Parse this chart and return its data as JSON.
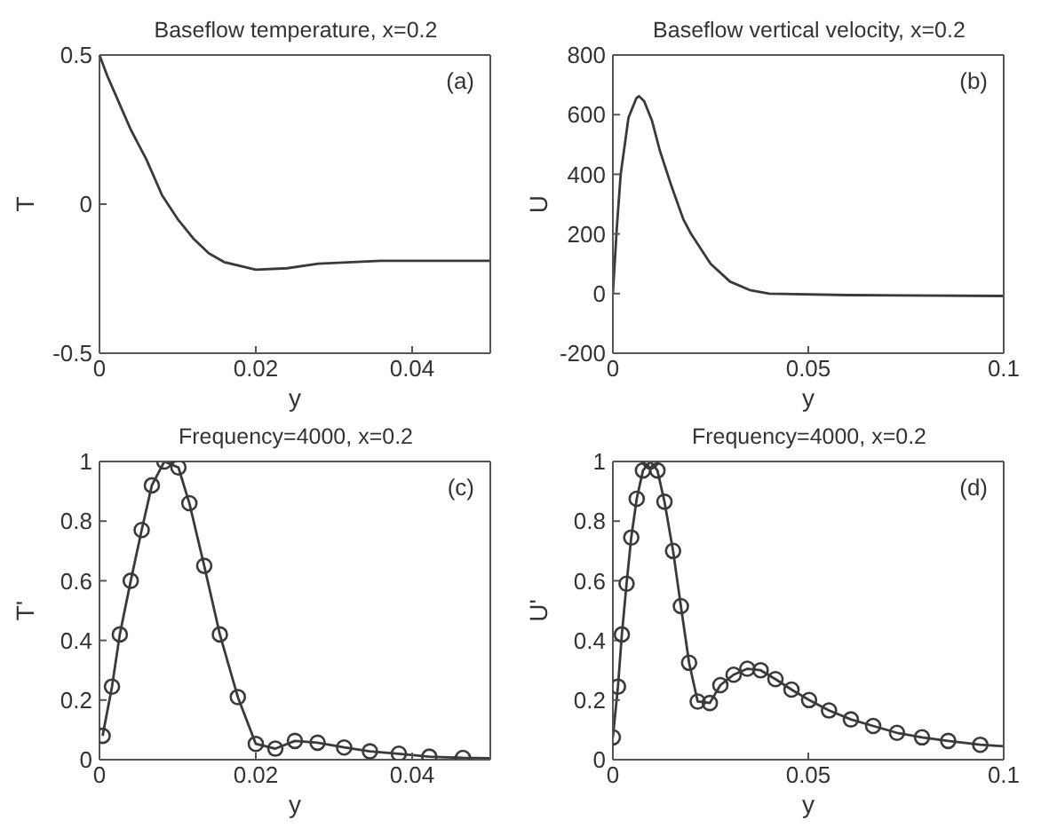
{
  "chart_data": [
    {
      "type": "line",
      "title": "Baseflow temperature, x=0.2",
      "xlabel": "y",
      "ylabel": "T",
      "annotations": [
        "(a)"
      ],
      "xlim": [
        0,
        0.05
      ],
      "ylim": [
        -0.5,
        0.5
      ],
      "xticks": [
        0,
        0.02,
        0.04
      ],
      "yticks": [
        -0.5,
        0,
        0.5
      ],
      "series": [
        {
          "color": "#3a3a3a",
          "marker": "none",
          "x": [
            0,
            0.001,
            0.002,
            0.003,
            0.004,
            0.005,
            0.006,
            0.007,
            0.008,
            0.01,
            0.012,
            0.014,
            0.016,
            0.02,
            0.024,
            0.028,
            0.036,
            0.05
          ],
          "values": [
            0.5,
            0.43,
            0.37,
            0.31,
            0.25,
            0.2,
            0.15,
            0.09,
            0.03,
            -0.05,
            -0.115,
            -0.165,
            -0.195,
            -0.22,
            -0.215,
            -0.2,
            -0.19,
            -0.19
          ]
        }
      ]
    },
    {
      "type": "line",
      "title": "Baseflow vertical velocity, x=0.2",
      "xlabel": "y",
      "ylabel": "U",
      "annotations": [
        "(b)"
      ],
      "xlim": [
        0,
        0.1
      ],
      "ylim": [
        -200,
        800
      ],
      "xticks": [
        0,
        0.05,
        0.1
      ],
      "yticks": [
        -200,
        0,
        200,
        400,
        600,
        800
      ],
      "series": [
        {
          "color": "#3a3a3a",
          "marker": "none",
          "x": [
            0,
            0.001,
            0.002,
            0.004,
            0.006,
            0.0067,
            0.008,
            0.01,
            0.012,
            0.015,
            0.018,
            0.02,
            0.025,
            0.03,
            0.035,
            0.04,
            0.06,
            0.1
          ],
          "values": [
            0,
            220,
            400,
            590,
            655,
            662,
            645,
            580,
            480,
            360,
            250,
            200,
            100,
            40,
            12,
            0,
            -5,
            -8
          ]
        }
      ]
    },
    {
      "type": "line",
      "title": "Frequency=4000, x=0.2",
      "xlabel": "y",
      "ylabel": "T'",
      "annotations": [
        "(c)"
      ],
      "xlim": [
        0,
        0.05
      ],
      "ylim": [
        0,
        1
      ],
      "xticks": [
        0,
        0.02,
        0.04
      ],
      "yticks": [
        0,
        0.2,
        0.4,
        0.6,
        0.8,
        1
      ],
      "series": [
        {
          "color": "#3a3a3a",
          "marker": "none",
          "x": [
            0.0004,
            0.0016,
            0.0026,
            0.004,
            0.0054,
            0.0067,
            0.0083,
            0.0101,
            0.0115,
            0.0134,
            0.0154,
            0.0177,
            0.02,
            0.0225,
            0.025,
            0.0279,
            0.0313,
            0.0346,
            0.0383,
            0.0422,
            0.0465,
            0.05
          ],
          "values": [
            0.08,
            0.245,
            0.42,
            0.6,
            0.77,
            0.92,
            1,
            0.98,
            0.86,
            0.65,
            0.42,
            0.21,
            0.053,
            0.037,
            0.063,
            0.057,
            0.041,
            0.028,
            0.02,
            0.01,
            0.006,
            0.005
          ]
        },
        {
          "type": "scatter",
          "color": "#3a3a3a",
          "marker": "circle",
          "x": [
            0.0004,
            0.0016,
            0.0026,
            0.004,
            0.0054,
            0.0067,
            0.0083,
            0.0101,
            0.0115,
            0.0134,
            0.0154,
            0.0177,
            0.02,
            0.0225,
            0.025,
            0.0279,
            0.0313,
            0.0346,
            0.0383,
            0.0422,
            0.0465
          ],
          "values": [
            0.08,
            0.245,
            0.42,
            0.6,
            0.77,
            0.92,
            1,
            0.98,
            0.86,
            0.65,
            0.42,
            0.21,
            0.053,
            0.037,
            0.063,
            0.057,
            0.041,
            0.028,
            0.02,
            0.01,
            0.006
          ]
        }
      ]
    },
    {
      "type": "line",
      "title": "Frequency=4000, x=0.2",
      "xlabel": "y",
      "ylabel": "U'",
      "annotations": [
        "(d)"
      ],
      "xlim": [
        0,
        0.1
      ],
      "ylim": [
        0,
        1
      ],
      "xticks": [
        0,
        0.05,
        0.1
      ],
      "yticks": [
        0,
        0.2,
        0.4,
        0.6,
        0.8,
        1
      ],
      "series": [
        {
          "color": "#3a3a3a",
          "marker": "none",
          "x": [
            0,
            0.0013,
            0.0023,
            0.0035,
            0.0047,
            0.0061,
            0.0077,
            0.0096,
            0.0114,
            0.0132,
            0.0154,
            0.0174,
            0.0195,
            0.0217,
            0.0248,
            0.0275,
            0.0309,
            0.0344,
            0.0378,
            0.0416,
            0.0457,
            0.0502,
            0.0553,
            0.0609,
            0.0666,
            0.0727,
            0.0791,
            0.0858,
            0.094,
            0.1
          ],
          "values": [
            0.075,
            0.245,
            0.42,
            0.59,
            0.745,
            0.875,
            0.97,
            1,
            0.97,
            0.865,
            0.7,
            0.515,
            0.325,
            0.195,
            0.19,
            0.25,
            0.285,
            0.305,
            0.3,
            0.27,
            0.235,
            0.2,
            0.165,
            0.135,
            0.113,
            0.09,
            0.075,
            0.063,
            0.05,
            0.045
          ]
        },
        {
          "type": "scatter",
          "color": "#3a3a3a",
          "marker": "circle",
          "x": [
            0,
            0.0013,
            0.0023,
            0.0035,
            0.0047,
            0.0061,
            0.0077,
            0.0096,
            0.0114,
            0.0132,
            0.0154,
            0.0174,
            0.0195,
            0.0217,
            0.0248,
            0.0275,
            0.0309,
            0.0344,
            0.0378,
            0.0416,
            0.0457,
            0.0502,
            0.0553,
            0.0609,
            0.0666,
            0.0727,
            0.0791,
            0.0858,
            0.094
          ],
          "values": [
            0.075,
            0.245,
            0.42,
            0.59,
            0.745,
            0.875,
            0.97,
            1,
            0.97,
            0.865,
            0.7,
            0.515,
            0.325,
            0.195,
            0.19,
            0.25,
            0.285,
            0.305,
            0.3,
            0.27,
            0.235,
            0.2,
            0.165,
            0.135,
            0.113,
            0.09,
            0.075,
            0.063,
            0.05
          ]
        }
      ]
    }
  ]
}
